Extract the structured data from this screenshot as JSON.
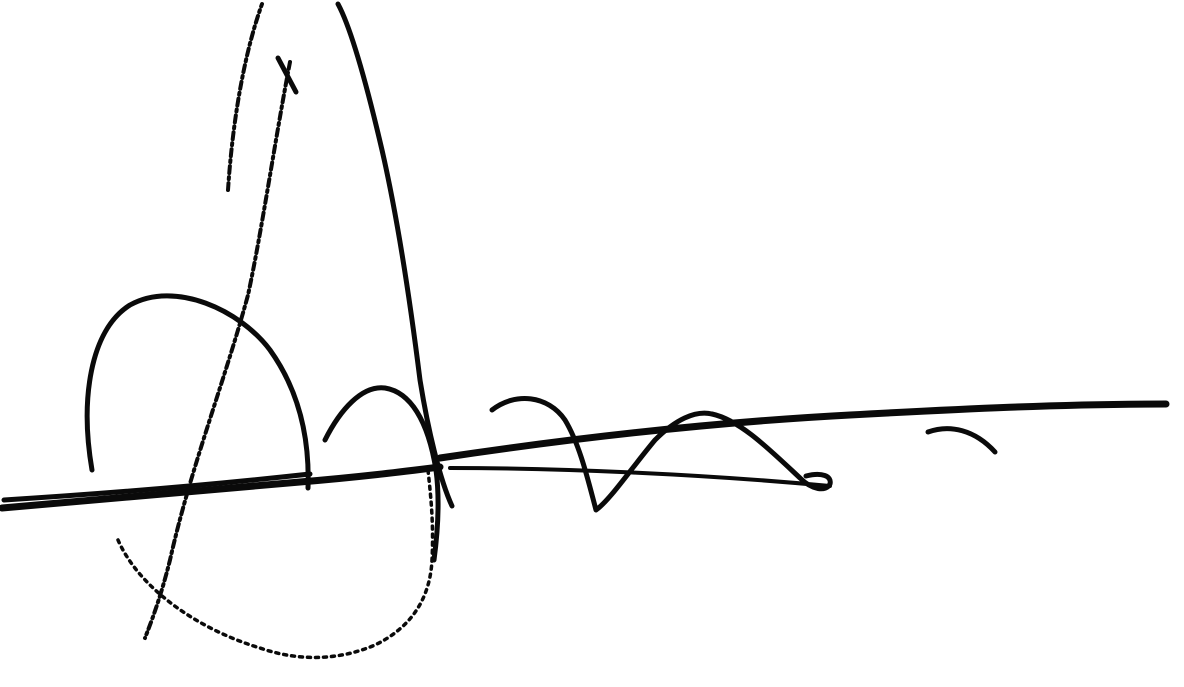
{
  "image": {
    "kind": "handwritten-signature",
    "background_color": "#ffffff",
    "ink_color": "#0a0a0a"
  }
}
